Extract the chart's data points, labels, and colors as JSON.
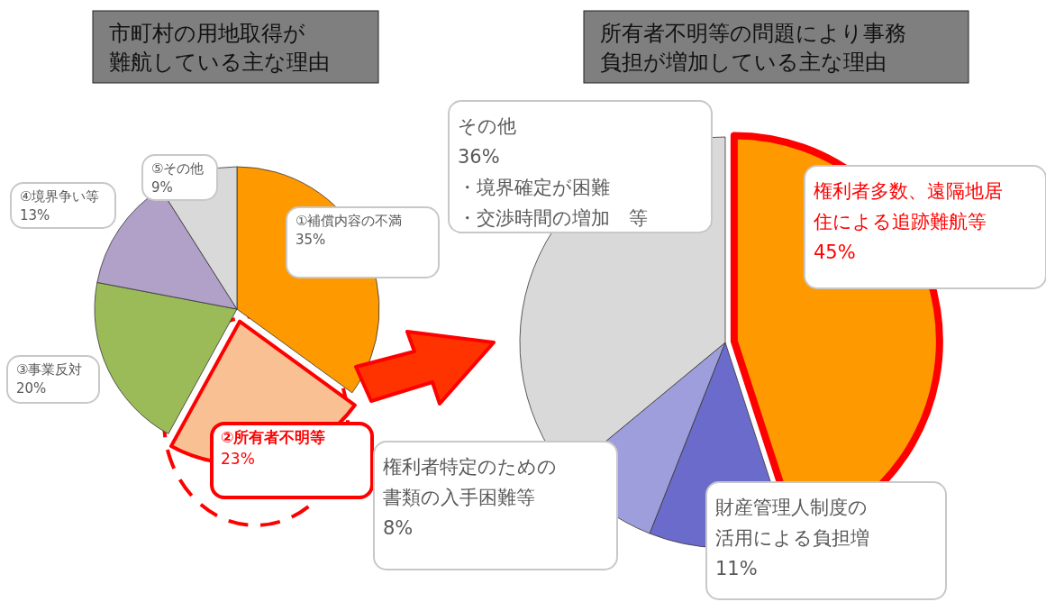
{
  "chart_data": [
    {
      "type": "pie",
      "title": "市町村の用地取得が難航している主な理由",
      "categories": [
        "①補償内容の不満",
        "②所有者不明等",
        "③事業反対",
        "④境界争い等",
        "⑤その他"
      ],
      "values": [
        35,
        23,
        20,
        13,
        9
      ],
      "value_labels": [
        "35%",
        "23%",
        "20%",
        "13%",
        "9%"
      ],
      "colors": [
        "#ff9900",
        "#f9c093",
        "#9bbb59",
        "#b1a0c7",
        "#d9d9d9"
      ]
    },
    {
      "type": "pie",
      "title": "所有者不明等の問題により事務負担が増加している主な理由",
      "categories": [
        "権利者多数、遠隔地居住による追跡難航等",
        "財産管理人制度の活用による負担増",
        "権利者特定のための書類の入手困難等",
        "その他"
      ],
      "values": [
        45,
        11,
        8,
        36
      ],
      "value_labels": [
        "45%",
        "11%",
        "8%",
        "36%"
      ],
      "colors": [
        "#ff9900",
        "#6b6bcc",
        "#9e9edc",
        "#d9d9d9"
      ],
      "annotations": [
        "・境界確定が困難",
        "・交渉時間の増加　等"
      ]
    }
  ]
}
